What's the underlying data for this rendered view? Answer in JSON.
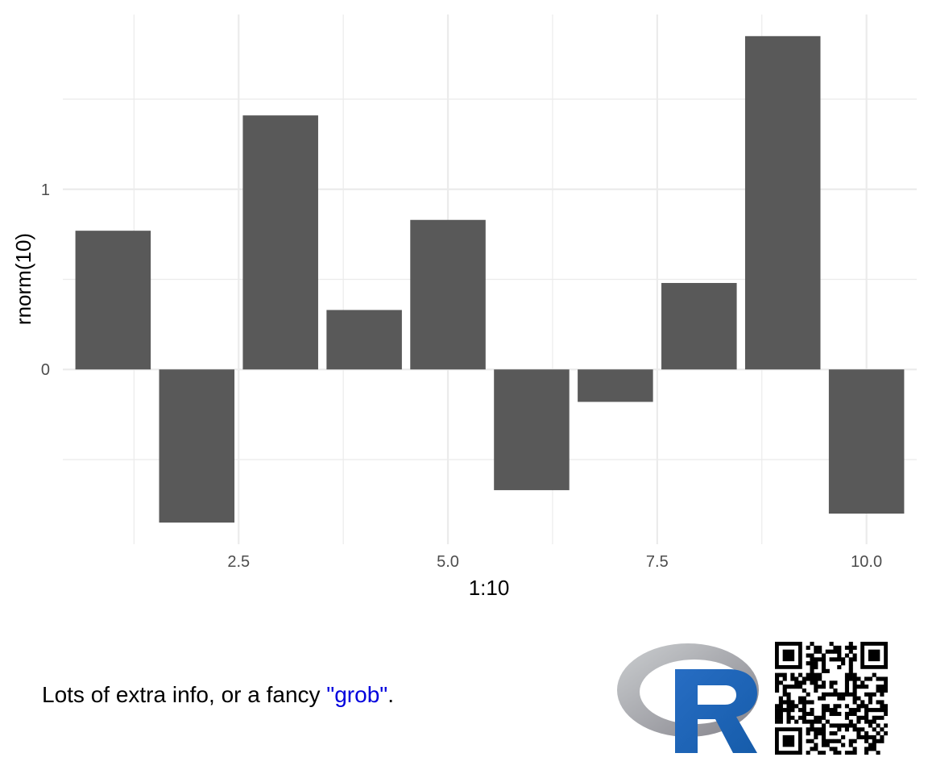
{
  "chart_data": {
    "type": "bar",
    "x": [
      1,
      2,
      3,
      4,
      5,
      6,
      7,
      8,
      9,
      10
    ],
    "values": [
      0.77,
      -0.85,
      1.41,
      0.33,
      0.83,
      -0.67,
      -0.18,
      0.48,
      1.85,
      -0.8
    ],
    "xlabel": "1:10",
    "ylabel": "rnorm(10)",
    "xlim": [
      0.4,
      10.6
    ],
    "ylim": [
      -0.97,
      1.97
    ],
    "x_ticks": [
      "2.5",
      "5.0",
      "7.5",
      "10.0"
    ],
    "y_ticks": [
      "0",
      "1"
    ],
    "grid": true,
    "bar_color": "#595959"
  },
  "caption": {
    "text_before": "Lots of extra info, or a fancy ",
    "highlight": "\"grob\"",
    "text_after": ".",
    "highlight_color": "#0000dd"
  },
  "logos": {
    "r_logo": "r-logo",
    "qr": "qr-code-icon"
  }
}
